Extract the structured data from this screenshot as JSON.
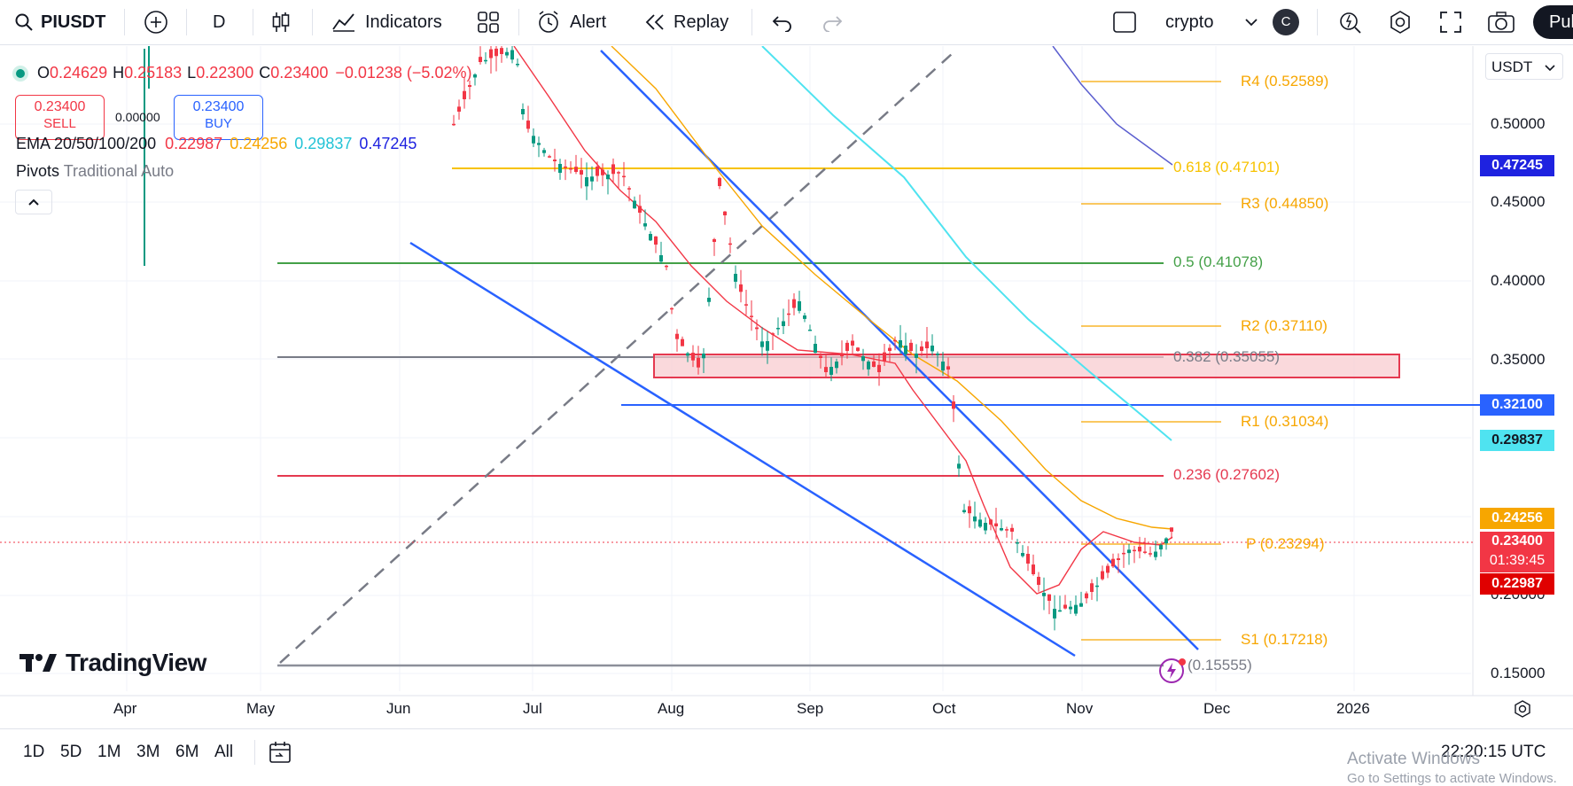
{
  "toolbar": {
    "symbol": "PIUSDT",
    "interval": "D",
    "indicators_label": "Indicators",
    "alert_label": "Alert",
    "replay_label": "Replay",
    "layout_name": "crypto",
    "avatar_letter": "C",
    "publish_label": "Pul"
  },
  "legend": {
    "open_label": "O",
    "open": "0.24629",
    "high_label": "H",
    "high": "0.25183",
    "low_label": "L",
    "low": "0.22300",
    "close_label": "C",
    "close": "0.23400",
    "change": "−0.01238 (−5.02%)",
    "sell_price": "0.23400",
    "sell_label": "SELL",
    "spread": "0.00000",
    "buy_price": "0.23400",
    "buy_label": "BUY",
    "ema_label": "EMA 20/50/100/200",
    "ema20": "0.22987",
    "ema50": "0.24256",
    "ema100": "0.29837",
    "ema200": "0.47245",
    "pivots_label": "Pivots",
    "pivots_settings": "Traditional Auto"
  },
  "chart": {
    "currency": "USDT",
    "logo_text": "TradingView",
    "price_labels": [
      "0.50000",
      "0.45000",
      "0.40000",
      "0.35000",
      "0.20000",
      "0.15000"
    ],
    "time_labels": [
      "Apr",
      "May",
      "Jun",
      "Jul",
      "Aug",
      "Sep",
      "Oct",
      "Nov",
      "Dec",
      "2026"
    ],
    "tags": {
      "ema200": "0.47245",
      "hline": "0.32100",
      "ema100": "0.29837",
      "ema50": "0.24256",
      "last_price": "0.23400",
      "countdown": "01:39:45",
      "ema20": "0.22987"
    },
    "fib_labels": {
      "f618": "0.618 (0.47101)",
      "f5": "0.5 (0.41078)",
      "f382": "0.382 (0.35055)",
      "f236": "0.236 (0.27602)",
      "f0": "(0.15555)"
    },
    "pivot_labels": {
      "r4": "R4 (0.52589)",
      "r3": "R3 (0.44850)",
      "r2": "R2 (0.37110)",
      "r1": "R1 (0.31034)",
      "p": "P (0.23294)",
      "s1": "S1 (0.17218)"
    }
  },
  "bottom": {
    "timeframes": [
      "1D",
      "5D",
      "1M",
      "3M",
      "6M",
      "All"
    ],
    "clock": "22:20:15 UTC",
    "watermark_title": "Activate Windows",
    "watermark_sub": "Go to Settings to activate Windows."
  },
  "colors": {
    "red": "#f23645",
    "green": "#089981",
    "blue": "#2962ff",
    "orange": "#f7a600",
    "cyan": "#4fe3f0",
    "navy": "#1e22e0"
  }
}
